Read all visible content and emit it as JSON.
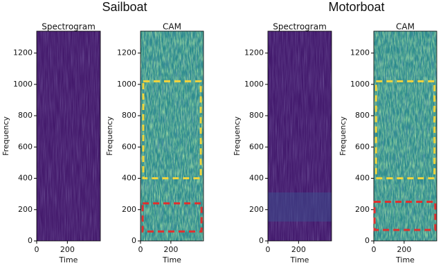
{
  "titles": [
    "Sailboat",
    "Motorboat"
  ],
  "chart_data": [
    {
      "type": "heatmap",
      "title": "Spectrogram",
      "xlabel": "Time",
      "ylabel": "Frequency",
      "xlim": [
        0,
        415
      ],
      "ylim": [
        0,
        1340
      ],
      "xticks": [
        0,
        200
      ],
      "yticks": [
        0,
        200,
        400,
        600,
        800,
        1000,
        1200
      ],
      "highlights": []
    },
    {
      "type": "heatmap",
      "title": "CAM",
      "xlabel": "Time",
      "ylabel": "Frequency",
      "xlim": [
        0,
        415
      ],
      "ylim": [
        0,
        1340
      ],
      "xticks": [
        0,
        200
      ],
      "yticks": [
        0,
        200,
        400,
        600,
        800,
        1000,
        1200
      ],
      "highlights": [
        {
          "x": [
            18,
            397
          ],
          "y": [
            400,
            1020
          ],
          "color": "#f2d43c"
        },
        {
          "x": [
            14,
            402
          ],
          "y": [
            60,
            240
          ],
          "color": "#e0302e"
        }
      ]
    },
    {
      "type": "heatmap",
      "title": "Spectrogram",
      "xlabel": "Time",
      "ylabel": "Frequency",
      "xlim": [
        0,
        415
      ],
      "ylim": [
        0,
        1340
      ],
      "xticks": [
        0,
        200
      ],
      "yticks": [
        0,
        200,
        400,
        600,
        800,
        1000,
        1200
      ],
      "highlights": []
    },
    {
      "type": "heatmap",
      "title": "CAM",
      "xlabel": "Time",
      "ylabel": "Frequency",
      "xlim": [
        0,
        415
      ],
      "ylim": [
        0,
        1340
      ],
      "xticks": [
        0,
        200
      ],
      "yticks": [
        0,
        200,
        400,
        600,
        800,
        1000,
        1200
      ],
      "highlights": [
        {
          "x": [
            15,
            400
          ],
          "y": [
            400,
            1020
          ],
          "color": "#f2d43c"
        },
        {
          "x": [
            5,
            405
          ],
          "y": [
            70,
            250
          ],
          "color": "#e0302e"
        }
      ]
    }
  ]
}
